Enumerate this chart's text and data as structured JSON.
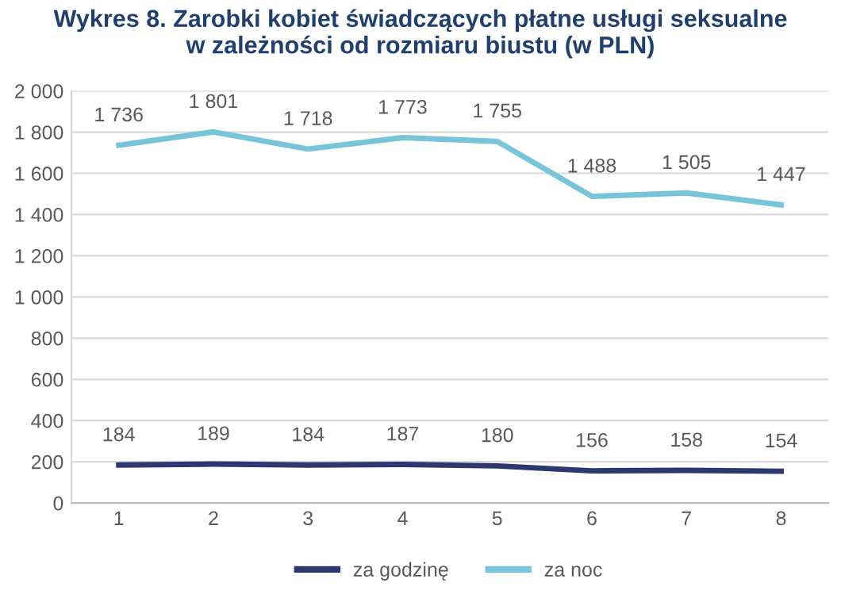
{
  "chart_data": {
    "type": "line",
    "title": "Wykres 8. Zarobki kobiet świadczących płatne usługi seksualne\nw zależności od rozmiaru biustu (w PLN)",
    "categories": [
      "1",
      "2",
      "3",
      "4",
      "5",
      "6",
      "7",
      "8"
    ],
    "series": [
      {
        "name": "za godzinę",
        "color": "#2e3870",
        "values": [
          184,
          189,
          184,
          187,
          180,
          156,
          158,
          154
        ],
        "value_labels": [
          "184",
          "189",
          "184",
          "187",
          "180",
          "156",
          "158",
          "154"
        ]
      },
      {
        "name": "za noc",
        "color": "#78c5da",
        "values": [
          1736,
          1801,
          1718,
          1773,
          1755,
          1488,
          1505,
          1447
        ],
        "value_labels": [
          "1 736",
          "1 801",
          "1 718",
          "1 773",
          "1 755",
          "1 488",
          "1 505",
          "1 447"
        ]
      }
    ],
    "ylim": [
      0,
      2000
    ],
    "yticks": [
      0,
      200,
      400,
      600,
      800,
      {
        "value": 1000,
        "label": "1 000"
      },
      {
        "value": 1200,
        "label": "1 200"
      },
      {
        "value": 1400,
        "label": "1 400"
      },
      {
        "value": 1600,
        "label": "1 600"
      },
      {
        "value": 1800,
        "label": "1 800"
      },
      {
        "value": 2000,
        "label": "2 000"
      }
    ],
    "grid": "y",
    "legend": "bottom",
    "marker": "none",
    "line_style": "solid"
  }
}
